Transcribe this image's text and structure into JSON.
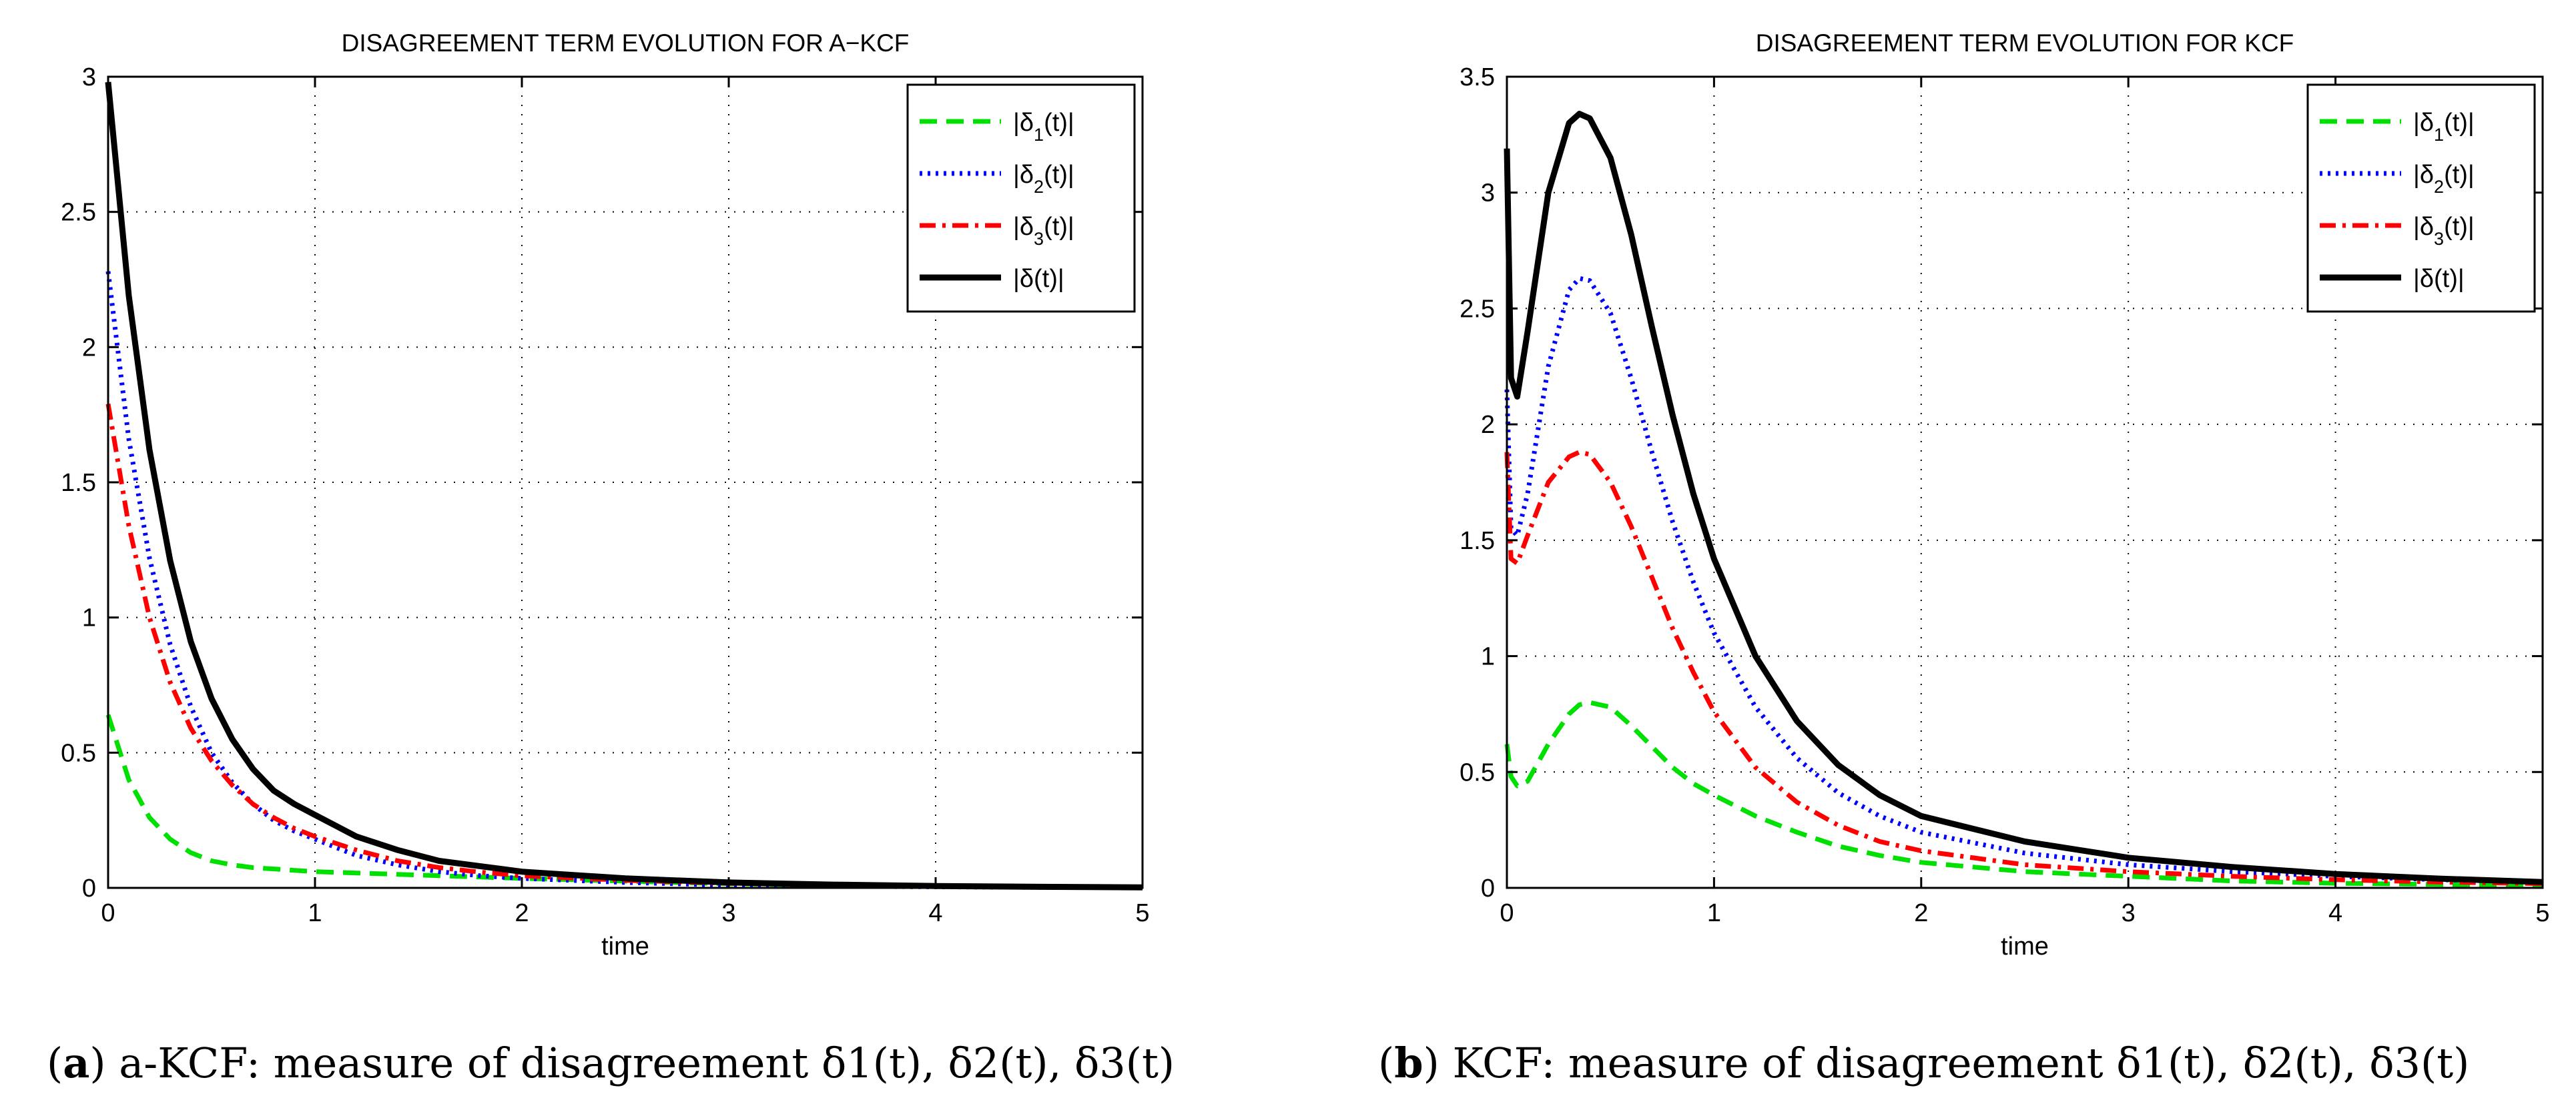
{
  "figure": {
    "captions": [
      {
        "paren_open": "(",
        "label": "a",
        "paren_close": ")",
        "text": " a-KCF: measure of disagreement ",
        "math": "δ",
        "parts": [
          "δ1(t)",
          "δ2(t)",
          "δ3(t)"
        ]
      },
      {
        "paren_open": "(",
        "label": "b",
        "paren_close": ")",
        "text": " KCF: measure of disagreement ",
        "math": "δ",
        "parts": [
          "δ1(t)",
          "δ2(t)",
          "δ3(t)"
        ]
      }
    ]
  },
  "chart_data": [
    {
      "type": "line",
      "title": "DISAGREEMENT TERM EVOLUTION FOR A−KCF",
      "xlabel": "time",
      "ylabel": "",
      "xlim": [
        0,
        5
      ],
      "ylim": [
        0,
        3
      ],
      "xticks": [
        0,
        1,
        2,
        3,
        4,
        5
      ],
      "yticks": [
        0,
        0.5,
        1,
        1.5,
        2,
        2.5,
        3
      ],
      "xtick_labels": [
        "0",
        "1",
        "2",
        "3",
        "4",
        "5"
      ],
      "ytick_labels": [
        "0",
        "0.5",
        "1",
        "1.5",
        "2",
        "2.5",
        "3"
      ],
      "grid": true,
      "legend_position": "top-right",
      "x": [
        0,
        0.1,
        0.2,
        0.3,
        0.4,
        0.5,
        0.6,
        0.7,
        0.8,
        0.9,
        1.0,
        1.2,
        1.4,
        1.6,
        1.8,
        2.0,
        2.5,
        3.0,
        3.5,
        4.0,
        4.5,
        5.0
      ],
      "series": [
        {
          "name": "|δ1(t)|",
          "legend_base": "|δ",
          "legend_sub": "1",
          "legend_rest": "(t)|",
          "color": "#00e000",
          "dash": "26,14",
          "values": [
            0.64,
            0.4,
            0.26,
            0.18,
            0.13,
            0.1,
            0.085,
            0.075,
            0.07,
            0.065,
            0.06,
            0.055,
            0.05,
            0.045,
            0.04,
            0.035,
            0.025,
            0.015,
            0.01,
            0.006,
            0.004,
            0.002
          ]
        },
        {
          "name": "|δ2(t)|",
          "legend_base": "|δ",
          "legend_sub": "2",
          "legend_rest": "(t)|",
          "color": "#0000ff",
          "dash": "4,8",
          "values": [
            2.28,
            1.66,
            1.22,
            0.9,
            0.67,
            0.5,
            0.39,
            0.31,
            0.25,
            0.21,
            0.18,
            0.12,
            0.085,
            0.06,
            0.045,
            0.035,
            0.02,
            0.01,
            0.006,
            0.004,
            0.002,
            0.001
          ]
        },
        {
          "name": "|δ3(t)|",
          "legend_base": "|δ",
          "legend_sub": "3",
          "legend_rest": "(t)|",
          "color": "#ff0000",
          "dash": "24,10,5,10",
          "values": [
            1.79,
            1.34,
            1.0,
            0.76,
            0.59,
            0.47,
            0.38,
            0.31,
            0.26,
            0.22,
            0.19,
            0.14,
            0.1,
            0.075,
            0.058,
            0.045,
            0.028,
            0.017,
            0.01,
            0.006,
            0.004,
            0.002
          ]
        },
        {
          "name": "|δ(t)|",
          "legend_base": "|δ(t)|",
          "legend_sub": "",
          "legend_rest": "",
          "color": "#000000",
          "dash": "",
          "values": [
            2.98,
            2.19,
            1.62,
            1.21,
            0.91,
            0.7,
            0.55,
            0.44,
            0.36,
            0.31,
            0.27,
            0.19,
            0.14,
            0.1,
            0.08,
            0.06,
            0.035,
            0.02,
            0.012,
            0.007,
            0.004,
            0.002
          ]
        }
      ]
    },
    {
      "type": "line",
      "title": "DISAGREEMENT TERM EVOLUTION FOR KCF",
      "xlabel": "time",
      "ylabel": "",
      "xlim": [
        0,
        5
      ],
      "ylim": [
        0,
        3.5
      ],
      "xticks": [
        0,
        1,
        2,
        3,
        4,
        5
      ],
      "yticks": [
        0,
        0.5,
        1,
        1.5,
        2,
        2.5,
        3,
        3.5
      ],
      "xtick_labels": [
        "0",
        "1",
        "2",
        "3",
        "4",
        "5"
      ],
      "ytick_labels": [
        "0",
        "0.5",
        "1",
        "1.5",
        "2",
        "2.5",
        "3",
        "3.5"
      ],
      "grid": true,
      "legend_position": "top-right",
      "x": [
        0,
        0.02,
        0.05,
        0.1,
        0.2,
        0.3,
        0.35,
        0.4,
        0.5,
        0.6,
        0.7,
        0.8,
        0.9,
        1.0,
        1.2,
        1.4,
        1.6,
        1.8,
        2.0,
        2.5,
        3.0,
        3.5,
        4.0,
        4.5,
        5.0
      ],
      "series": [
        {
          "name": "|δ1(t)|",
          "legend_base": "|δ",
          "legend_sub": "1",
          "legend_rest": "(t)|",
          "color": "#00e000",
          "dash": "26,14",
          "values": [
            0.62,
            0.48,
            0.44,
            0.46,
            0.62,
            0.75,
            0.79,
            0.8,
            0.78,
            0.7,
            0.61,
            0.52,
            0.45,
            0.4,
            0.31,
            0.24,
            0.18,
            0.14,
            0.11,
            0.07,
            0.05,
            0.03,
            0.02,
            0.015,
            0.01
          ]
        },
        {
          "name": "|δ2(t)|",
          "legend_base": "|δ",
          "legend_sub": "2",
          "legend_rest": "(t)|",
          "color": "#0000ff",
          "dash": "4,8",
          "values": [
            2.15,
            1.55,
            1.52,
            1.7,
            2.25,
            2.58,
            2.63,
            2.62,
            2.48,
            2.2,
            1.88,
            1.58,
            1.32,
            1.1,
            0.78,
            0.56,
            0.41,
            0.31,
            0.24,
            0.15,
            0.1,
            0.07,
            0.05,
            0.035,
            0.025
          ]
        },
        {
          "name": "|δ3(t)|",
          "legend_base": "|δ",
          "legend_sub": "3",
          "legend_rest": "(t)|",
          "color": "#ff0000",
          "dash": "24,10,5,10",
          "values": [
            1.88,
            1.42,
            1.4,
            1.52,
            1.75,
            1.86,
            1.88,
            1.87,
            1.75,
            1.56,
            1.34,
            1.12,
            0.93,
            0.76,
            0.52,
            0.37,
            0.27,
            0.2,
            0.16,
            0.1,
            0.07,
            0.05,
            0.035,
            0.025,
            0.018
          ]
        },
        {
          "name": "|δ(t)|",
          "legend_base": "|δ(t)|",
          "legend_sub": "",
          "legend_rest": "",
          "color": "#000000",
          "dash": "",
          "values": [
            3.19,
            2.2,
            2.12,
            2.4,
            3.0,
            3.3,
            3.34,
            3.32,
            3.15,
            2.82,
            2.42,
            2.04,
            1.7,
            1.42,
            1.0,
            0.72,
            0.53,
            0.4,
            0.31,
            0.2,
            0.13,
            0.09,
            0.06,
            0.04,
            0.025
          ]
        }
      ]
    }
  ]
}
